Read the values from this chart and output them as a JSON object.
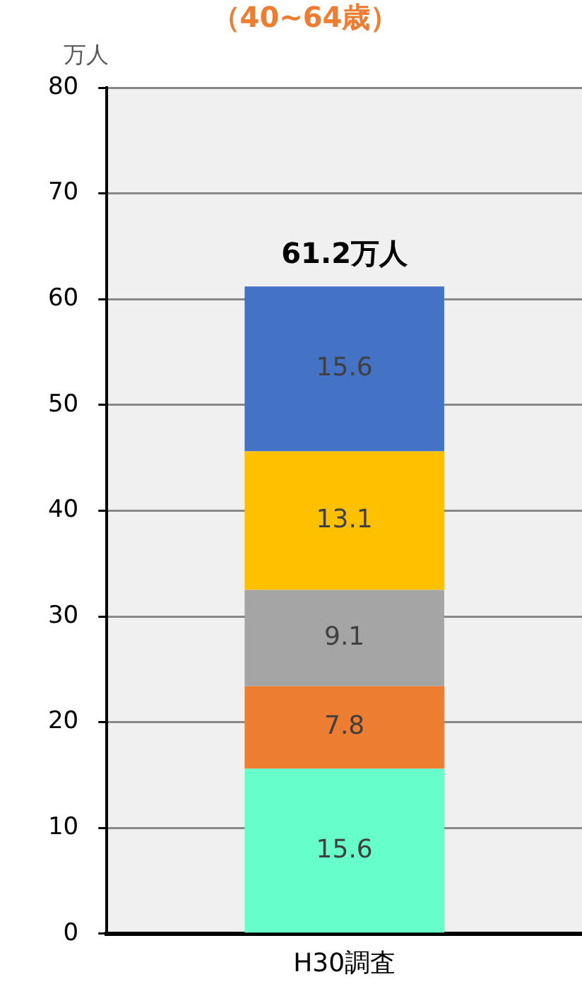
{
  "chart_data": {
    "type": "bar",
    "title": "（40~64歳）",
    "ylabel": "万人",
    "categories": [
      "H30調査"
    ],
    "stacked": true,
    "series": [
      {
        "color": "#66ffcc",
        "values": [
          15.6
        ]
      },
      {
        "color": "#ed7d31",
        "values": [
          7.8
        ]
      },
      {
        "color": "#a5a5a5",
        "values": [
          9.1
        ]
      },
      {
        "color": "#ffc000",
        "values": [
          13.1
        ]
      },
      {
        "color": "#4472c4",
        "values": [
          15.6
        ]
      }
    ],
    "data_labels": true,
    "totals": [
      "61.2万人"
    ],
    "ylim": [
      0,
      80
    ],
    "yticks": [
      0,
      10,
      20,
      30,
      40,
      50,
      60,
      70,
      80
    ],
    "grid": "y",
    "legend": false
  }
}
